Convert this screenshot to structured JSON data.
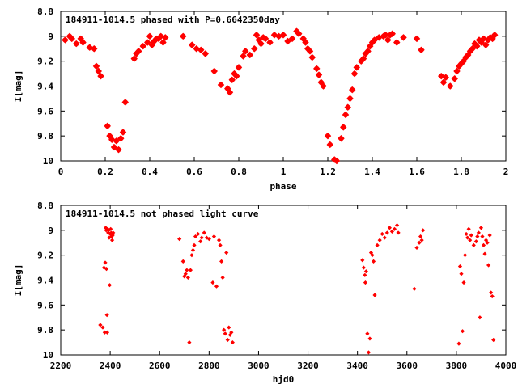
{
  "chart_data": [
    {
      "type": "scatter",
      "title": "184911-1014.5 phased with P=0.6642350day",
      "xlabel": "phase",
      "ylabel": "I[mag]",
      "xlim": [
        0,
        2
      ],
      "ylim": [
        10,
        8.8
      ],
      "y_inverted": true,
      "xticks": [
        "0",
        "0.2",
        "0.4",
        "0.6",
        "0.8",
        "1",
        "1.2",
        "1.4",
        "1.6",
        "1.8",
        "2"
      ],
      "yticks": [
        "8.8",
        "9",
        "9.2",
        "9.4",
        "9.6",
        "9.8",
        "10"
      ],
      "grid": false,
      "marker": "star",
      "color": "#ff0000",
      "series": [
        {
          "x": [
            0.02,
            0.04,
            0.05,
            0.07,
            0.09,
            0.1,
            0.13,
            0.15,
            0.16,
            0.17,
            0.18,
            0.21,
            0.22,
            0.23,
            0.24,
            0.25,
            0.26,
            0.27,
            0.28,
            0.29,
            0.33,
            0.34,
            0.35,
            0.37,
            0.39,
            0.4,
            0.41,
            0.42,
            0.43,
            0.44,
            0.45,
            0.46,
            0.47,
            0.55,
            0.59,
            0.61,
            0.63,
            0.65,
            0.69,
            0.72,
            0.75,
            0.76,
            0.77,
            0.78,
            0.79,
            0.8,
            0.82,
            0.83,
            0.85,
            0.87,
            0.88,
            0.89,
            0.9,
            0.91,
            0.92,
            0.94,
            0.96,
            0.98,
            1.0,
            1.02,
            1.04,
            1.06,
            1.07,
            1.09,
            1.1,
            1.11,
            1.12,
            1.13,
            1.15,
            1.16,
            1.17,
            1.18,
            1.2,
            1.21,
            1.23,
            1.24,
            1.26,
            1.27,
            1.28,
            1.29,
            1.3,
            1.31,
            1.32,
            1.33,
            1.35,
            1.36,
            1.37,
            1.38,
            1.39,
            1.4,
            1.41,
            1.43,
            1.45,
            1.46,
            1.47,
            1.48,
            1.49,
            1.51,
            1.54,
            1.6,
            1.62,
            1.71,
            1.72,
            1.73,
            1.75,
            1.77,
            1.78,
            1.79,
            1.8,
            1.81,
            1.82,
            1.83,
            1.84,
            1.85,
            1.86,
            1.87,
            1.88,
            1.89,
            1.9,
            1.91,
            1.92,
            1.93,
            1.94,
            1.95
          ],
          "y": [
            9.03,
            9.0,
            9.02,
            9.06,
            9.02,
            9.05,
            9.09,
            9.1,
            9.24,
            9.28,
            9.32,
            9.72,
            9.8,
            9.83,
            9.89,
            9.84,
            9.91,
            9.82,
            9.77,
            9.53,
            9.18,
            9.14,
            9.12,
            9.08,
            9.05,
            9.0,
            9.07,
            9.04,
            9.02,
            9.02,
            9.0,
            9.05,
            9.01,
            9.0,
            9.07,
            9.1,
            9.11,
            9.14,
            9.28,
            9.39,
            9.42,
            9.45,
            9.35,
            9.3,
            9.32,
            9.25,
            9.16,
            9.12,
            9.15,
            9.1,
            8.99,
            9.03,
            9.06,
            9.01,
            9.02,
            9.05,
            8.99,
            9.0,
            8.99,
            9.04,
            9.02,
            8.96,
            8.98,
            9.02,
            9.05,
            9.1,
            9.12,
            9.17,
            9.26,
            9.31,
            9.37,
            9.4,
            9.8,
            9.87,
            9.99,
            10.0,
            9.82,
            9.73,
            9.63,
            9.57,
            9.5,
            9.43,
            9.3,
            9.25,
            9.2,
            9.18,
            9.14,
            9.12,
            9.08,
            9.05,
            9.03,
            9.01,
            9.0,
            8.99,
            9.03,
            8.99,
            8.98,
            9.05,
            9.01,
            9.02,
            9.11,
            9.32,
            9.37,
            9.33,
            9.4,
            9.34,
            9.28,
            9.24,
            9.22,
            9.2,
            9.17,
            9.15,
            9.12,
            9.1,
            9.06,
            9.08,
            9.03,
            9.05,
            9.02,
            9.07,
            9.03,
            9.01,
            9.02,
            8.99
          ]
        }
      ]
    },
    {
      "type": "scatter",
      "title": "184911-1014.5 not phased light curve",
      "xlabel": "hjd0",
      "ylabel": "I[mag]",
      "xlim": [
        2200,
        4000
      ],
      "ylim": [
        10,
        8.8
      ],
      "y_inverted": true,
      "xticks": [
        "2200",
        "2400",
        "2600",
        "2800",
        "3000",
        "3200",
        "3400",
        "3600",
        "3800",
        "4000"
      ],
      "yticks": [
        "8.8",
        "9",
        "9.2",
        "9.4",
        "9.6",
        "9.8",
        "10"
      ],
      "grid": false,
      "marker": "diamond",
      "color": "#ff0000",
      "series": [
        {
          "x": [
            2360,
            2370,
            2375,
            2378,
            2380,
            2382,
            2384,
            2385,
            2387,
            2388,
            2390,
            2392,
            2394,
            2396,
            2398,
            2400,
            2402,
            2404,
            2406,
            2408,
            2410,
            2412,
            2680,
            2695,
            2700,
            2705,
            2710,
            2715,
            2720,
            2725,
            2730,
            2735,
            2740,
            2745,
            2755,
            2765,
            2770,
            2780,
            2790,
            2800,
            2815,
            2820,
            2830,
            2840,
            2845,
            2850,
            2855,
            2860,
            2865,
            2870,
            2875,
            2880,
            2885,
            2890,
            2895,
            3420,
            3425,
            3430,
            3432,
            3435,
            3440,
            3445,
            3450,
            3455,
            3460,
            3465,
            3470,
            3480,
            3490,
            3500,
            3510,
            3520,
            3530,
            3540,
            3550,
            3560,
            3565,
            3630,
            3640,
            3650,
            3655,
            3660,
            3665,
            3810,
            3815,
            3820,
            3825,
            3830,
            3835,
            3840,
            3845,
            3850,
            3855,
            3860,
            3870,
            3880,
            3885,
            3890,
            3895,
            3900,
            3905,
            3910,
            3915,
            3920,
            3925,
            3930,
            3935,
            3940,
            3945,
            3950
          ],
          "y": [
            9.76,
            9.78,
            9.3,
            9.82,
            9.26,
            8.98,
            9.0,
            9.31,
            9.68,
            9.82,
            8.99,
            9.02,
            9.0,
            9.06,
            9.44,
            9.03,
            8.99,
            9.02,
            9.05,
            9.08,
            9.04,
            9.02,
            9.07,
            9.25,
            9.37,
            9.35,
            9.32,
            9.38,
            9.9,
            9.32,
            9.2,
            9.16,
            9.12,
            9.05,
            9.03,
            9.09,
            9.06,
            9.02,
            9.06,
            9.07,
            9.42,
            9.05,
            9.45,
            9.08,
            9.12,
            9.25,
            9.38,
            9.8,
            9.83,
            9.18,
            9.88,
            9.78,
            9.84,
            9.82,
            9.9,
            9.24,
            9.3,
            9.36,
            9.42,
            9.33,
            9.83,
            9.98,
            9.87,
            9.18,
            9.2,
            9.25,
            9.52,
            9.12,
            9.08,
            9.03,
            9.06,
            9.02,
            8.98,
            9.01,
            8.99,
            8.96,
            9.02,
            9.47,
            9.14,
            9.1,
            9.05,
            9.08,
            9.0,
            9.91,
            9.29,
            9.35,
            9.81,
            9.42,
            9.2,
            9.03,
            9.06,
            8.99,
            9.08,
            9.04,
            9.12,
            9.09,
            9.05,
            9.02,
            9.7,
            8.98,
            9.05,
            9.12,
            9.19,
            9.08,
            9.1,
            9.28,
            9.04,
            9.5,
            9.53,
            9.88
          ]
        }
      ]
    }
  ]
}
